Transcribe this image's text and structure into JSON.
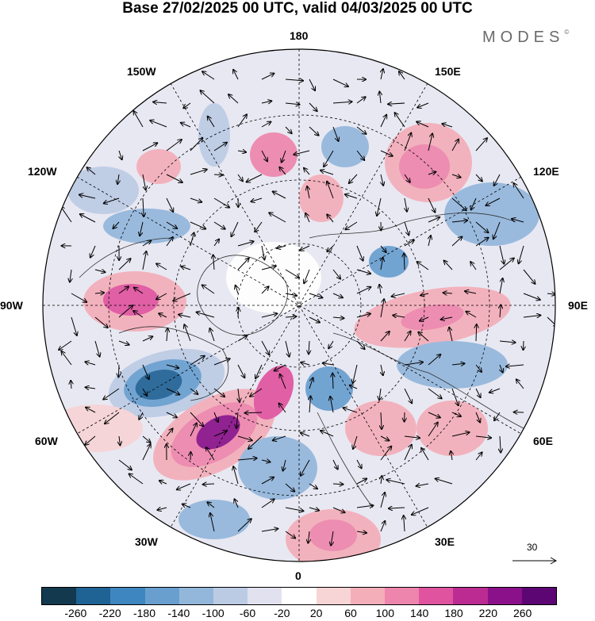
{
  "title": "Base 27/02/2025 00 UTC, valid 04/03/2025 00 UTC",
  "brand": "MODES",
  "brand_mark": "©",
  "labels": {
    "top": "180",
    "nw": "150W",
    "ne": "150E",
    "wnw": "120W",
    "ene": "120E",
    "w": "90W",
    "e": "90E",
    "wsw": "60W",
    "ese": "60E",
    "sw": "30W",
    "se": "30E",
    "bottom": "0"
  },
  "reference_vector": "30",
  "colorbar": {
    "ticks": [
      "-260",
      "-220",
      "-180",
      "-140",
      "-100",
      "-60",
      "-20",
      "20",
      "60",
      "100",
      "140",
      "180",
      "220",
      "260"
    ],
    "colors": [
      "#13394f",
      "#1f6294",
      "#3d86bf",
      "#689fcf",
      "#93b7db",
      "#bccbe4",
      "#e1e1f0",
      "#ffffff",
      "#f7d4d6",
      "#f4aeb9",
      "#ee85ac",
      "#e0539f",
      "#bb2b92",
      "#8a1189",
      "#5c0673"
    ]
  },
  "colors": {
    "negative_strong": "#1f6294",
    "negative_mid": "#689fcf",
    "negative_weak": "#bccbe4",
    "positive_weak": "#f7d4d6",
    "positive_mid": "#ee85ac",
    "positive_strong": "#8a1189",
    "land": "#f0f0f0"
  }
}
